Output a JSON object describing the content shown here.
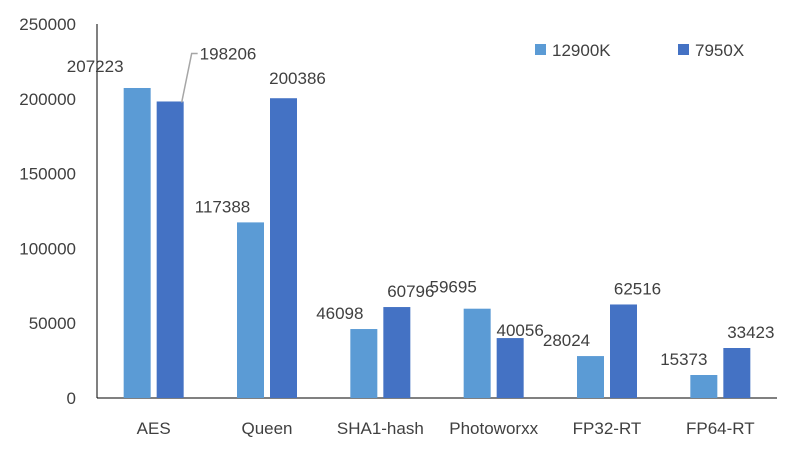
{
  "chart_data": {
    "type": "bar",
    "title": "",
    "xlabel": "",
    "ylabel": "",
    "categories": [
      "AES",
      "Queen",
      "SHA1-hash",
      "Photoworxx",
      "FP32-RT",
      "FP64-RT"
    ],
    "series": [
      {
        "name": "12900K",
        "color": "#5B9BD5",
        "values": [
          207223,
          117388,
          46098,
          59695,
          28024,
          15373
        ],
        "labels": [
          "207223",
          "117388",
          "46098",
          "59695",
          "28024",
          "15373"
        ]
      },
      {
        "name": "7950X",
        "color": "#4472C4",
        "values": [
          198206,
          200386,
          60796,
          40056,
          62516,
          33423
        ],
        "labels": [
          "198206",
          "200386",
          "60796",
          "40056",
          "62516",
          "33423"
        ]
      }
    ],
    "ylim": [
      0,
      250000
    ],
    "yticks": [
      "0",
      "50000",
      "100000",
      "150000",
      "200000",
      "250000"
    ],
    "grid": false,
    "legend_position": "top-right"
  }
}
